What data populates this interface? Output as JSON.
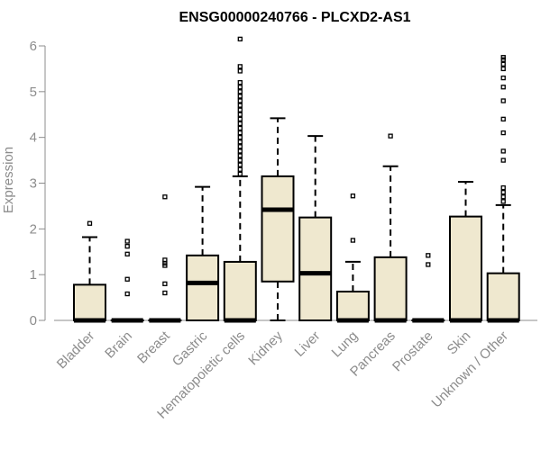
{
  "chart_data": {
    "type": "boxplot",
    "title": "ENSG00000240766 - PLCXD2-AS1",
    "ylabel": "Expression",
    "xlabel": "",
    "ylim": [
      0,
      6.2
    ],
    "yticks": [
      0,
      1,
      2,
      3,
      4,
      5,
      6
    ],
    "grid": false,
    "box_color": "#efe8cf",
    "categories": [
      "Bladder",
      "Brain",
      "Breast",
      "Gastric",
      "Hematopoietic cells",
      "Kidney",
      "Liver",
      "Lung",
      "Pancreas",
      "Prostate",
      "Skin",
      "Unknown / Other"
    ],
    "boxes": [
      {
        "category": "Bladder",
        "min": 0,
        "q1": 0,
        "median": 0,
        "q3": 0.78,
        "max": 1.82,
        "outliers": [
          2.12
        ]
      },
      {
        "category": "Brain",
        "min": 0,
        "q1": 0,
        "median": 0,
        "q3": 0,
        "max": 0,
        "outliers": [
          0.58,
          0.9,
          1.45,
          1.62,
          1.73
        ]
      },
      {
        "category": "Breast",
        "min": 0,
        "q1": 0,
        "median": 0,
        "q3": 0,
        "max": 0,
        "outliers": [
          0.6,
          0.8,
          1.2,
          1.25,
          1.32,
          2.7
        ]
      },
      {
        "category": "Gastric",
        "min": 0,
        "q1": 0,
        "median": 0.82,
        "q3": 1.42,
        "max": 2.92,
        "outliers": []
      },
      {
        "category": "Hematopoietic cells",
        "min": 0,
        "q1": 0,
        "median": 0,
        "q3": 1.28,
        "max": 3.15,
        "outliers": [
          3.2,
          3.3,
          3.4,
          3.5,
          3.6,
          3.7,
          3.8,
          3.9,
          4.0,
          4.1,
          4.2,
          4.3,
          4.4,
          4.5,
          4.6,
          4.7,
          4.8,
          4.9,
          5.0,
          5.1,
          5.2,
          5.45,
          5.55,
          6.15
        ]
      },
      {
        "category": "Kidney",
        "min": 0,
        "q1": 0.85,
        "median": 2.42,
        "q3": 3.15,
        "max": 4.42,
        "outliers": []
      },
      {
        "category": "Liver",
        "min": 0,
        "q1": 0,
        "median": 1.03,
        "q3": 2.25,
        "max": 4.03,
        "outliers": []
      },
      {
        "category": "Lung",
        "min": 0,
        "q1": 0,
        "median": 0,
        "q3": 0.63,
        "max": 1.28,
        "outliers": [
          1.75,
          2.72
        ]
      },
      {
        "category": "Pancreas",
        "min": 0,
        "q1": 0,
        "median": 0,
        "q3": 1.38,
        "max": 3.37,
        "outliers": [
          4.03
        ]
      },
      {
        "category": "Prostate",
        "min": 0,
        "q1": 0,
        "median": 0,
        "q3": 0,
        "max": 0,
        "outliers": [
          1.22,
          1.42
        ]
      },
      {
        "category": "Skin",
        "min": 0,
        "q1": 0,
        "median": 0,
        "q3": 2.27,
        "max": 3.03,
        "outliers": []
      },
      {
        "category": "Unknown / Other",
        "min": 0,
        "q1": 0,
        "median": 0,
        "q3": 1.03,
        "max": 2.52,
        "outliers": [
          2.6,
          2.7,
          2.8,
          2.9,
          3.5,
          3.7,
          4.1,
          4.4,
          4.8,
          5.1,
          5.3,
          5.5,
          5.6,
          5.7,
          5.75
        ]
      }
    ]
  }
}
